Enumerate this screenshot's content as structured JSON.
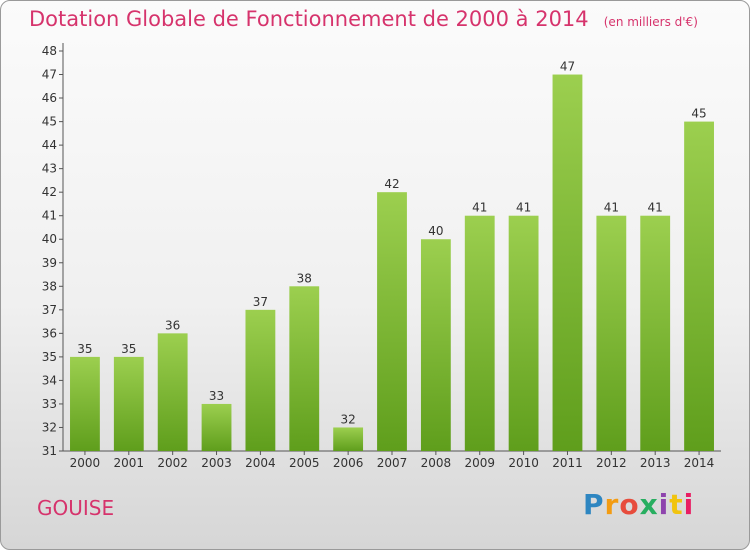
{
  "title": "Dotation Globale de Fonctionnement de 2000 à 2014",
  "unit": "(en milliers d'€)",
  "commune": "GOUISE",
  "logo": {
    "text": "Proxiti",
    "colors": [
      "#2e86c1",
      "#f39c12",
      "#e74c3c",
      "#27ae60",
      "#8e44ad",
      "#f1c40f",
      "#e91e63"
    ]
  },
  "chart_data": {
    "type": "bar",
    "categories": [
      "2000",
      "2001",
      "2002",
      "2003",
      "2004",
      "2005",
      "2006",
      "2007",
      "2008",
      "2009",
      "2010",
      "2011",
      "2012",
      "2013",
      "2014"
    ],
    "values": [
      35,
      35,
      36,
      33,
      37,
      38,
      32,
      42,
      40,
      41,
      41,
      47,
      41,
      41,
      45
    ],
    "ylim": [
      31,
      48
    ],
    "yticks": [
      31,
      32,
      33,
      34,
      35,
      36,
      37,
      38,
      39,
      40,
      41,
      42,
      43,
      44,
      45,
      46,
      47,
      48
    ],
    "grid": false,
    "bar_color": "#7cbd2c",
    "axis_color": "#555555"
  }
}
